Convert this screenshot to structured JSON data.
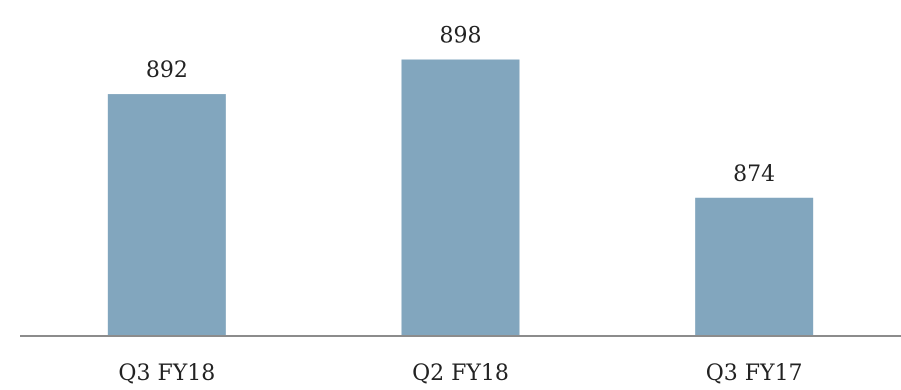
{
  "chart_data": {
    "type": "bar",
    "categories": [
      "Q3 FY18",
      "Q2 FY18",
      "Q3 FY17"
    ],
    "values": [
      892,
      898,
      874
    ],
    "data_labels": [
      "892",
      "898",
      "874"
    ],
    "ylim": [
      850,
      900
    ],
    "grid": false,
    "legend": "none",
    "bar_color": "#82a6be",
    "baseline_color": "#8c8c8c"
  }
}
